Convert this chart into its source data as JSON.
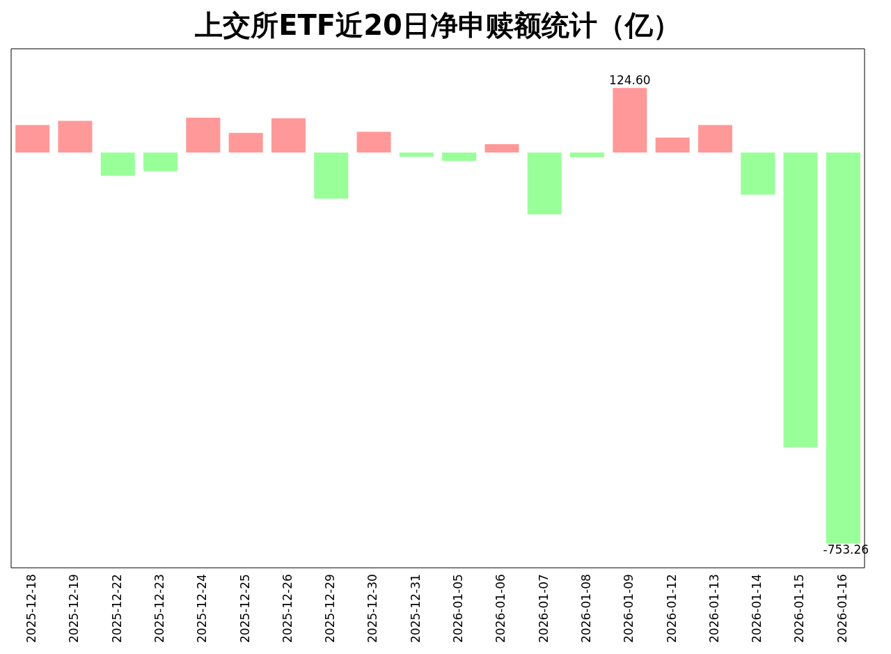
{
  "chart_data": {
    "type": "bar",
    "title": "上交所ETF近20日净申赎额统计（亿）",
    "categories": [
      "2025-12-18",
      "2025-12-19",
      "2025-12-22",
      "2025-12-23",
      "2025-12-24",
      "2025-12-25",
      "2025-12-26",
      "2025-12-29",
      "2025-12-30",
      "2025-12-31",
      "2026-01-05",
      "2026-01-06",
      "2026-01-07",
      "2026-01-08",
      "2026-01-09",
      "2026-01-12",
      "2026-01-13",
      "2026-01-14",
      "2026-01-15",
      "2026-01-16"
    ],
    "values": [
      53,
      61,
      -45,
      -36,
      67,
      38,
      66,
      -89,
      40,
      -8,
      -16,
      16,
      -119,
      -9,
      124.6,
      29,
      53,
      -81,
      -568,
      -753.26
    ],
    "colors": [
      "#ff9999",
      "#ff9999",
      "#99ff99",
      "#99ff99",
      "#ff9999",
      "#ff9999",
      "#ff9999",
      "#99ff99",
      "#ff9999",
      "#99ff99",
      "#99ff99",
      "#ff9999",
      "#99ff99",
      "#99ff99",
      "#ff9999",
      "#ff9999",
      "#ff9999",
      "#99ff99",
      "#99ff99",
      "#99ff99"
    ],
    "value_labels": [
      null,
      null,
      null,
      null,
      null,
      null,
      null,
      null,
      null,
      null,
      null,
      null,
      null,
      null,
      "124.60",
      null,
      null,
      null,
      null,
      "-753.26"
    ]
  }
}
